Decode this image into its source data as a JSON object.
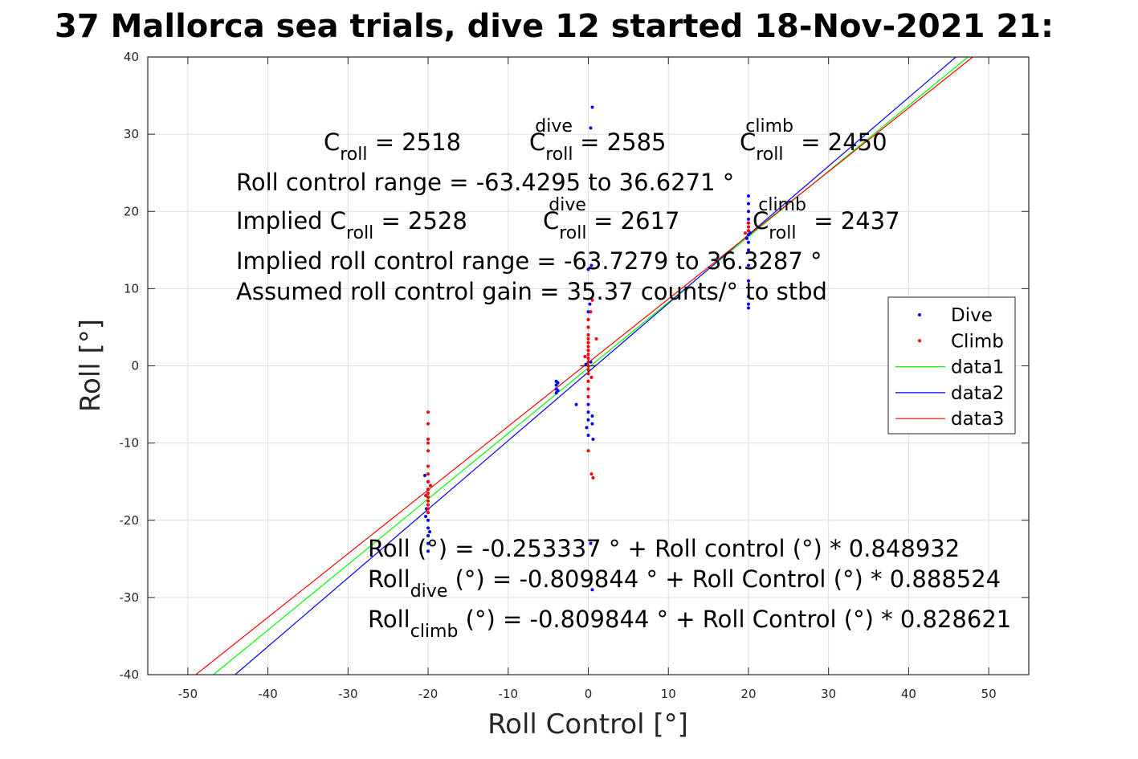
{
  "chart_data": {
    "type": "scatter",
    "title": "37 Mallorca sea trials, dive 12 started 18-Nov-2021 21:",
    "xlabel": "Roll Control [°]",
    "ylabel": "Roll [°]",
    "xlim": [
      -55,
      55
    ],
    "ylim": [
      -40,
      40
    ],
    "xticks": [
      -50,
      -40,
      -30,
      -20,
      -10,
      0,
      10,
      20,
      30,
      40,
      50
    ],
    "yticks": [
      -40,
      -30,
      -20,
      -10,
      0,
      10,
      20,
      30,
      40
    ],
    "grid": true,
    "legend_position": "right",
    "series": [
      {
        "name": "Dive",
        "kind": "scatter",
        "color": "#0000ff",
        "points": [
          [
            -20,
            -15
          ],
          [
            -20,
            -16
          ],
          [
            -20,
            -17
          ],
          [
            -20,
            -18
          ],
          [
            -20,
            -19
          ],
          [
            -20,
            -20
          ],
          [
            -20,
            -21
          ],
          [
            -20,
            -22
          ],
          [
            -20,
            -23
          ],
          [
            -20,
            -24
          ],
          [
            -20.2,
            -18.5
          ],
          [
            -20.3,
            -19.5
          ],
          [
            -19.8,
            -21.5
          ],
          [
            -20.4,
            -14.2
          ],
          [
            -4,
            -2
          ],
          [
            -4,
            -2.5
          ],
          [
            -4,
            -3
          ],
          [
            -4,
            -3.5
          ],
          [
            -3.8,
            -2.2
          ],
          [
            -3.8,
            -3.2
          ],
          [
            0,
            -1
          ],
          [
            0,
            -2
          ],
          [
            0,
            -3
          ],
          [
            0,
            -4
          ],
          [
            0,
            -5
          ],
          [
            0,
            -6
          ],
          [
            0,
            -7
          ],
          [
            -0.2,
            -8
          ],
          [
            0,
            -9
          ],
          [
            0.5,
            -6.5
          ],
          [
            0.5,
            -7.5
          ],
          [
            0.6,
            -9.5
          ],
          [
            0,
            1
          ],
          [
            0,
            2
          ],
          [
            0,
            3
          ],
          [
            0,
            4
          ],
          [
            0,
            5
          ],
          [
            0,
            6
          ],
          [
            0,
            7
          ],
          [
            0.2,
            8
          ],
          [
            0,
            12.5
          ],
          [
            0.4,
            13
          ],
          [
            0.3,
            30.8
          ],
          [
            0.5,
            33.5
          ],
          [
            -1.5,
            -5
          ],
          [
            0.3,
            -23
          ],
          [
            0.5,
            -29
          ],
          [
            -0.3,
            0.2
          ],
          [
            0.3,
            0.5
          ],
          [
            20,
            7.5
          ],
          [
            20,
            8
          ],
          [
            20,
            9
          ],
          [
            20,
            11
          ],
          [
            20,
            13
          ],
          [
            20,
            15
          ],
          [
            20,
            16
          ],
          [
            20,
            17
          ],
          [
            20,
            17.5
          ],
          [
            20,
            18
          ],
          [
            20,
            18.5
          ],
          [
            20,
            19
          ],
          [
            20,
            20
          ],
          [
            20,
            21
          ],
          [
            20,
            22
          ],
          [
            19.8,
            16.5
          ],
          [
            20.2,
            17.2
          ]
        ]
      },
      {
        "name": "Climb",
        "kind": "scatter",
        "color": "#ff0000",
        "points": [
          [
            -20,
            -6
          ],
          [
            -20,
            -7.5
          ],
          [
            -20,
            -9.5
          ],
          [
            -20,
            -10
          ],
          [
            -20,
            -11
          ],
          [
            -20,
            -13
          ],
          [
            -20,
            -14
          ],
          [
            -20,
            -15
          ],
          [
            -20,
            -16
          ],
          [
            -20,
            -16.5
          ],
          [
            -20,
            -17
          ],
          [
            -20,
            -17.5
          ],
          [
            -20,
            -18
          ],
          [
            -20,
            -18.5
          ],
          [
            -20,
            -19
          ],
          [
            -19.7,
            -15.5
          ],
          [
            -20.3,
            -16.8
          ],
          [
            0,
            -1
          ],
          [
            0,
            -0.5
          ],
          [
            0,
            0
          ],
          [
            0,
            0.5
          ],
          [
            0,
            1
          ],
          [
            0,
            1.5
          ],
          [
            0,
            2
          ],
          [
            0,
            2.5
          ],
          [
            0,
            3
          ],
          [
            0,
            3.5
          ],
          [
            0,
            4
          ],
          [
            0,
            5
          ],
          [
            0,
            6
          ],
          [
            0.3,
            7
          ],
          [
            0.5,
            8.5
          ],
          [
            0,
            -2
          ],
          [
            0,
            -3
          ],
          [
            0,
            -4
          ],
          [
            0,
            -11
          ],
          [
            0.4,
            -14
          ],
          [
            0.6,
            -14.5
          ],
          [
            1,
            3.5
          ],
          [
            -0.4,
            1.2
          ],
          [
            0.4,
            -1.5
          ],
          [
            20,
            17.5
          ],
          [
            20,
            18
          ],
          [
            20,
            18.5
          ],
          [
            19.6,
            17.2
          ]
        ]
      },
      {
        "name": "data1",
        "kind": "line",
        "color": "#00ff00",
        "x": [
          -46.8,
          47.4
        ],
        "y": [
          -40,
          40
        ]
      },
      {
        "name": "data2",
        "kind": "line",
        "color": "#0000ff",
        "x": [
          -44.1,
          45.9
        ],
        "y": [
          -40,
          40
        ]
      },
      {
        "name": "data3",
        "kind": "line",
        "color": "#ff0000",
        "x": [
          -49.0,
          48.0
        ],
        "y": [
          -40,
          40
        ]
      }
    ],
    "annotations": [
      {
        "id": "c_roll",
        "base": "C",
        "sub": "roll",
        "sup": "",
        "suffix": " = 2518"
      },
      {
        "id": "c_roll_dive",
        "base": "C",
        "sub": "roll",
        "sup": "dive",
        "suffix": " = 2585"
      },
      {
        "id": "c_roll_climb",
        "base": "C",
        "sub": "roll",
        "sup": "climb",
        "suffix": " = 2450"
      },
      {
        "id": "range",
        "text": "Roll control range = -63.4295 to 36.6271 °"
      },
      {
        "id": "impl_c_roll",
        "base": "Implied C",
        "sub": "roll",
        "sup": "",
        "suffix": " = 2528"
      },
      {
        "id": "impl_c_dive",
        "base": "C",
        "sub": "roll",
        "sup": "dive",
        "suffix": " = 2617"
      },
      {
        "id": "impl_c_climb",
        "base": "C",
        "sub": "roll",
        "sup": "climb",
        "suffix": " = 2437"
      },
      {
        "id": "impl_range",
        "text": "Implied roll control range = -63.7279 to 36.3287 °"
      },
      {
        "id": "gain",
        "text": "Assumed roll control gain = 35.37 counts/° to stbd"
      },
      {
        "id": "fit_all",
        "text": "Roll (°) = -0.253337 ° + Roll control (°) * 0.848932"
      },
      {
        "id": "fit_dive",
        "base": "Roll",
        "sub": "dive",
        "sup": "",
        "suffix": " (°) = -0.809844 ° + Roll Control (°) * 0.888524"
      },
      {
        "id": "fit_climb",
        "base": "Roll",
        "sub": "climb",
        "sup": "",
        "suffix": " (°) = -0.809844 ° + Roll Control (°) * 0.828621"
      }
    ]
  }
}
